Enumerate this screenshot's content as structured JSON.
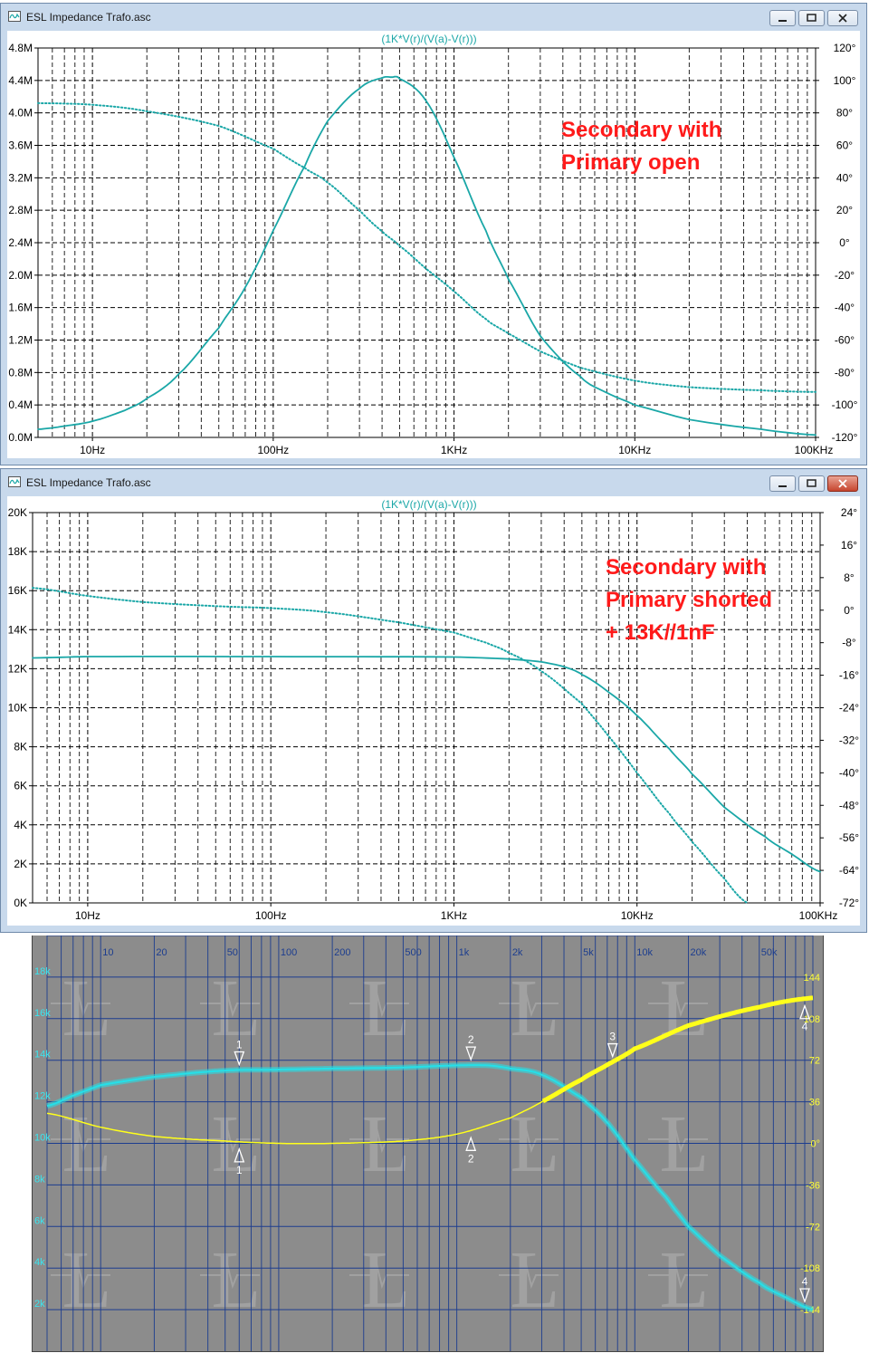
{
  "windows": [
    {
      "title": "ESL Impedance Trafo.asc",
      "trace_label": "(1K*V(r)/(V(a)-V(r)))",
      "annotation": [
        "Secondary  with",
        "Primary open"
      ],
      "colors": {
        "trace": "#1aa7a7",
        "annotation": "#ff1a1a",
        "grid": "#000000"
      },
      "chart_data": {
        "type": "line",
        "x_scale": "log",
        "xlim": [
          5,
          100000
        ],
        "x_ticks": [
          10,
          100,
          1000,
          10000,
          100000
        ],
        "x_tick_labels": [
          "10Hz",
          "100Hz",
          "1KHz",
          "10KHz",
          "100KHz"
        ],
        "ylim_left": [
          0,
          4.8
        ],
        "y_unit_left": "M",
        "y_ticks_left": [
          "0.0M",
          "0.4M",
          "0.8M",
          "1.2M",
          "1.6M",
          "2.0M",
          "2.4M",
          "2.8M",
          "3.2M",
          "3.6M",
          "4.0M",
          "4.4M",
          "4.8M"
        ],
        "ylim_right": [
          -120,
          120
        ],
        "y_ticks_right": [
          "-120°",
          "-100°",
          "-80°",
          "-60°",
          "-40°",
          "-20°",
          "0°",
          "20°",
          "40°",
          "60°",
          "80°",
          "100°",
          "120°"
        ],
        "grid": true,
        "series": [
          {
            "kind": "magnitude",
            "axis": "left",
            "style": "solid",
            "x": [
              5,
              7,
              10,
              15,
              20,
              30,
              50,
              70,
              100,
              150,
              200,
              300,
              400,
              450,
              500,
              700,
              1000,
              1500,
              2000,
              3000,
              5000,
              7000,
              10000,
              20000,
              50000,
              100000
            ],
            "y": [
              0.1,
              0.14,
              0.2,
              0.33,
              0.48,
              0.78,
              1.35,
              1.85,
              2.55,
              3.35,
              3.9,
              4.3,
              4.43,
              4.44,
              4.42,
              4.15,
              3.45,
              2.55,
              1.95,
              1.25,
              0.75,
              0.55,
              0.4,
              0.22,
              0.1,
              0.03
            ]
          },
          {
            "kind": "phase",
            "axis": "right",
            "style": "dotted",
            "x": [
              5,
              10,
              20,
              50,
              100,
              150,
              200,
              300,
              400,
              500,
              700,
              1000,
              1500,
              2000,
              3000,
              5000,
              10000,
              20000,
              50000,
              100000
            ],
            "y": [
              86,
              85,
              81,
              72,
              58,
              46,
              37,
              20,
              7,
              -2,
              -16,
              -30,
              -47,
              -56,
              -67,
              -77,
              -85,
              -89,
              -91,
              -92
            ]
          }
        ]
      }
    },
    {
      "title": "ESL Impedance Trafo.asc",
      "trace_label": "(1K*V(r)/(V(a)-V(r)))",
      "annotation": [
        "Secondary with",
        "Primary shorted",
        "+ 13K//1nF"
      ],
      "colors": {
        "trace": "#1aa7a7",
        "annotation": "#ff1a1a",
        "grid": "#000000"
      },
      "chart_data": {
        "type": "line",
        "x_scale": "log",
        "xlim": [
          5,
          100000
        ],
        "x_ticks": [
          10,
          100,
          1000,
          10000,
          100000
        ],
        "x_tick_labels": [
          "10Hz",
          "100Hz",
          "1KHz",
          "10KHz",
          "100KHz"
        ],
        "ylim_left": [
          0,
          20
        ],
        "y_unit_left": "K",
        "y_ticks_left": [
          "0K",
          "2K",
          "4K",
          "6K",
          "8K",
          "10K",
          "12K",
          "14K",
          "16K",
          "18K",
          "20K"
        ],
        "ylim_right": [
          -72,
          24
        ],
        "y_ticks_right": [
          "-72°",
          "-64°",
          "-56°",
          "-48°",
          "-40°",
          "-32°",
          "-24°",
          "-16°",
          "-8°",
          "0°",
          "8°",
          "16°",
          "24°"
        ],
        "grid": true,
        "series": [
          {
            "kind": "magnitude",
            "axis": "left",
            "style": "solid",
            "x": [
              5,
              10,
              100,
              1000,
              2000,
              3000,
              4000,
              5000,
              7000,
              10000,
              15000,
              20000,
              30000,
              50000,
              70000,
              100000
            ],
            "y": [
              12.55,
              12.62,
              12.62,
              12.6,
              12.5,
              12.35,
              12.1,
              11.7,
              10.8,
              9.6,
              7.9,
              6.6,
              4.9,
              3.4,
              2.5,
              1.6
            ]
          },
          {
            "kind": "phase",
            "axis": "right",
            "style": "dotted",
            "x": [
              5,
              10,
              20,
              50,
              100,
              200,
              500,
              1000,
              1500,
              2000,
              3000,
              5000,
              7000,
              10000,
              15000,
              20000,
              30000,
              40000
            ],
            "y": [
              5.5,
              3.5,
              2,
              1,
              0.5,
              -0.5,
              -3,
              -5.5,
              -8,
              -10.5,
              -15,
              -23,
              -31,
              -40,
              -50,
              -57,
              -66,
              -72
            ]
          }
        ]
      }
    }
  ],
  "scope": {
    "colors": {
      "background": "#8c8c8c",
      "grid": "#1c3d8f",
      "magnitude": "#25e0e8",
      "phase": "#ffff1a",
      "left_labels": "#39e6f0",
      "right_labels": "#ffff33"
    },
    "chart_data": {
      "type": "line",
      "x_scale": "log",
      "xlim": [
        5,
        100000
      ],
      "x_tick_labels": [
        "10",
        "20",
        "50",
        "100",
        "200",
        "500",
        "1k",
        "2k",
        "5k",
        "10k",
        "20k",
        "50k"
      ],
      "x_ticks": [
        10,
        20,
        50,
        100,
        200,
        500,
        1000,
        2000,
        5000,
        10000,
        20000,
        50000
      ],
      "ylim_left": [
        0,
        20
      ],
      "y_ticks_left": [
        "2k",
        "4k",
        "6k",
        "8k",
        "10k",
        "12k",
        "14k",
        "16k",
        "18k"
      ],
      "y_ticks_right": [
        "-144",
        "-108",
        "-72",
        "-36",
        "0°",
        "36",
        "72",
        "108",
        "144"
      ],
      "ylim_right": [
        -180,
        180
      ],
      "series": [
        {
          "kind": "magnitude",
          "axis": "left",
          "x": [
            5,
            7,
            10,
            20,
            50,
            100,
            200,
            500,
            1000,
            1500,
            2000,
            3000,
            5000,
            7000,
            10000,
            15000,
            20000,
            30000,
            50000,
            70000,
            100000
          ],
          "y": [
            11.8,
            12.3,
            12.8,
            13.2,
            13.5,
            13.55,
            13.6,
            13.65,
            13.75,
            13.75,
            13.6,
            13.3,
            12.2,
            11.0,
            9.2,
            7.4,
            6.0,
            4.6,
            3.3,
            2.6,
            2.0
          ]
        },
        {
          "kind": "phase",
          "axis": "right",
          "x": [
            5,
            10,
            20,
            50,
            100,
            200,
            500,
            1000,
            2000,
            3000,
            5000,
            7000,
            10000,
            20000,
            50000,
            100000
          ],
          "y": [
            26,
            14,
            6,
            2,
            0,
            0,
            2,
            8,
            22,
            36,
            55,
            68,
            82,
            102,
            118,
            126
          ]
        }
      ],
      "markers": [
        {
          "label": "1",
          "x": 60,
          "trace": "magnitude",
          "dir": "down"
        },
        {
          "label": "1",
          "x": 60,
          "trace": "phase",
          "dir": "up"
        },
        {
          "label": "2",
          "x": 1200,
          "trace": "magnitude",
          "dir": "down"
        },
        {
          "label": "2",
          "x": 1200,
          "trace": "phase",
          "dir": "up"
        },
        {
          "label": "3",
          "x": 7500,
          "trace": "phase",
          "dir": "down"
        },
        {
          "label": "4",
          "x": 90000,
          "trace": "phase",
          "dir": "up"
        },
        {
          "label": "4",
          "x": 90000,
          "trace": "magnitude",
          "dir": "down"
        }
      ]
    }
  }
}
